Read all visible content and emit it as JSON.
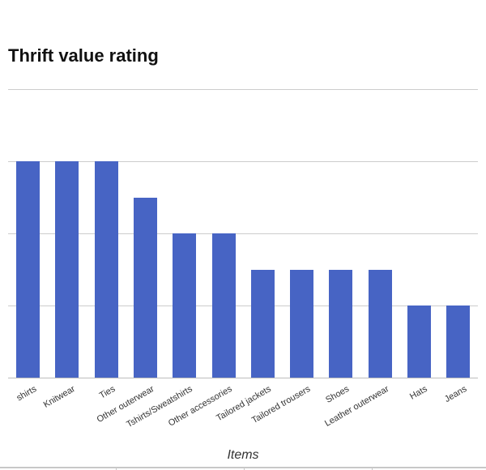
{
  "chart_data": {
    "type": "bar",
    "title": "Thrift value rating",
    "xlabel": "Items",
    "ylabel": "",
    "ylim": [
      0,
      4
    ],
    "grid": true,
    "gridlines": [
      0,
      1,
      2,
      3,
      4
    ],
    "legend": null,
    "bar_color": "#4764c4",
    "categories": [
      "shirts",
      "Knitwear",
      "Ties",
      "Other outerwear",
      "Tshirts/Sweatshirts",
      "Other accessories",
      "Tailored jackets",
      "Tailored trousers",
      "Shoes",
      "Leather outerwear",
      "Hats",
      "Jeans"
    ],
    "values": [
      3,
      3,
      3,
      2.5,
      2,
      2,
      1.5,
      1.5,
      1.5,
      1.5,
      1,
      1
    ]
  },
  "footer": {
    "tick_positions": [
      143,
      301,
      459
    ]
  }
}
